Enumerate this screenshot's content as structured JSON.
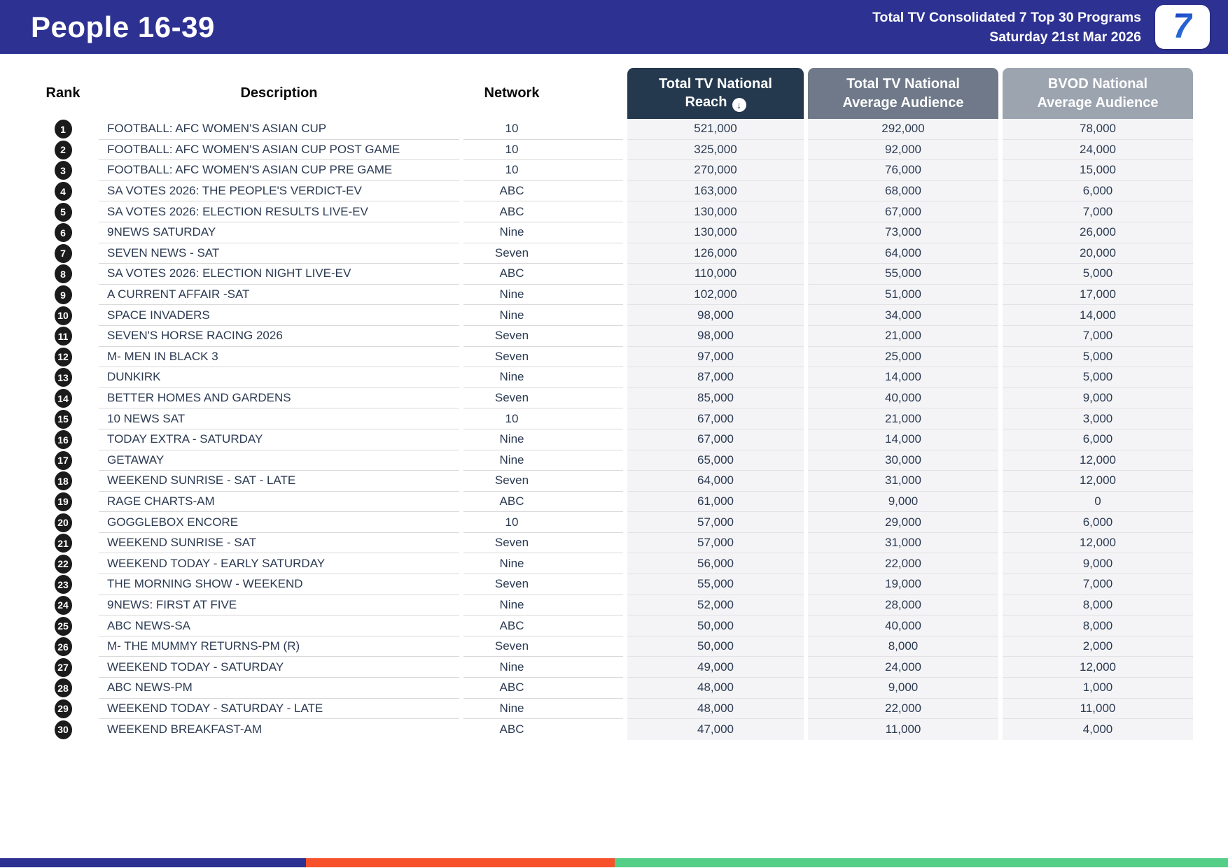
{
  "header": {
    "title": "People 16-39",
    "subtitle_line1": "Total TV Consolidated 7 Top 30 Programs",
    "subtitle_line2": "Saturday 21st Mar 2026",
    "logo_text": "7"
  },
  "icons": {
    "sort_descending": "↓"
  },
  "colors": {
    "header_background": "#2D3192",
    "reach_header": "#24384E",
    "avg_audience_header": "#6F7989",
    "bvod_header": "#9CA4B0",
    "metric_cell_background": "#F4F4F6",
    "footer_blue": "#2D3192",
    "footer_orange": "#F7512B",
    "footer_green": "#55CF88",
    "logo_blue": "#1B43C8"
  },
  "table": {
    "columns": {
      "rank": "Rank",
      "description": "Description",
      "network": "Network",
      "reach": "Total TV National Reach",
      "avg_audience": "Total TV National Average Audience",
      "bvod_avg_audience": "BVOD National Average Audience"
    },
    "rows": [
      {
        "rank": "1",
        "description": "FOOTBALL: AFC WOMEN'S ASIAN CUP",
        "network": "10",
        "reach": "521,000",
        "avg_audience": "292,000",
        "bvod_avg_audience": "78,000"
      },
      {
        "rank": "2",
        "description": "FOOTBALL: AFC WOMEN'S ASIAN CUP POST GAME",
        "network": "10",
        "reach": "325,000",
        "avg_audience": "92,000",
        "bvod_avg_audience": "24,000"
      },
      {
        "rank": "3",
        "description": "FOOTBALL: AFC WOMEN'S ASIAN CUP PRE GAME",
        "network": "10",
        "reach": "270,000",
        "avg_audience": "76,000",
        "bvod_avg_audience": "15,000"
      },
      {
        "rank": "4",
        "description": "SA VOTES 2026: THE PEOPLE'S VERDICT-EV",
        "network": "ABC",
        "reach": "163,000",
        "avg_audience": "68,000",
        "bvod_avg_audience": "6,000"
      },
      {
        "rank": "5",
        "description": "SA VOTES 2026: ELECTION RESULTS LIVE-EV",
        "network": "ABC",
        "reach": "130,000",
        "avg_audience": "67,000",
        "bvod_avg_audience": "7,000"
      },
      {
        "rank": "6",
        "description": "9NEWS SATURDAY",
        "network": "Nine",
        "reach": "130,000",
        "avg_audience": "73,000",
        "bvod_avg_audience": "26,000"
      },
      {
        "rank": "7",
        "description": "SEVEN NEWS - SAT",
        "network": "Seven",
        "reach": "126,000",
        "avg_audience": "64,000",
        "bvod_avg_audience": "20,000"
      },
      {
        "rank": "8",
        "description": "SA VOTES 2026: ELECTION NIGHT LIVE-EV",
        "network": "ABC",
        "reach": "110,000",
        "avg_audience": "55,000",
        "bvod_avg_audience": "5,000"
      },
      {
        "rank": "9",
        "description": "A CURRENT AFFAIR -SAT",
        "network": "Nine",
        "reach": "102,000",
        "avg_audience": "51,000",
        "bvod_avg_audience": "17,000"
      },
      {
        "rank": "10",
        "description": "SPACE INVADERS",
        "network": "Nine",
        "reach": "98,000",
        "avg_audience": "34,000",
        "bvod_avg_audience": "14,000"
      },
      {
        "rank": "11",
        "description": "SEVEN'S HORSE RACING 2026",
        "network": "Seven",
        "reach": "98,000",
        "avg_audience": "21,000",
        "bvod_avg_audience": "7,000"
      },
      {
        "rank": "12",
        "description": "M- MEN IN BLACK 3",
        "network": "Seven",
        "reach": "97,000",
        "avg_audience": "25,000",
        "bvod_avg_audience": "5,000"
      },
      {
        "rank": "13",
        "description": "DUNKIRK",
        "network": "Nine",
        "reach": "87,000",
        "avg_audience": "14,000",
        "bvod_avg_audience": "5,000"
      },
      {
        "rank": "14",
        "description": "BETTER HOMES AND GARDENS",
        "network": "Seven",
        "reach": "85,000",
        "avg_audience": "40,000",
        "bvod_avg_audience": "9,000"
      },
      {
        "rank": "15",
        "description": "10 NEWS SAT",
        "network": "10",
        "reach": "67,000",
        "avg_audience": "21,000",
        "bvod_avg_audience": "3,000"
      },
      {
        "rank": "16",
        "description": "TODAY EXTRA - SATURDAY",
        "network": "Nine",
        "reach": "67,000",
        "avg_audience": "14,000",
        "bvod_avg_audience": "6,000"
      },
      {
        "rank": "17",
        "description": "GETAWAY",
        "network": "Nine",
        "reach": "65,000",
        "avg_audience": "30,000",
        "bvod_avg_audience": "12,000"
      },
      {
        "rank": "18",
        "description": "WEEKEND SUNRISE - SAT - LATE",
        "network": "Seven",
        "reach": "64,000",
        "avg_audience": "31,000",
        "bvod_avg_audience": "12,000"
      },
      {
        "rank": "19",
        "description": "RAGE CHARTS-AM",
        "network": "ABC",
        "reach": "61,000",
        "avg_audience": "9,000",
        "bvod_avg_audience": "0"
      },
      {
        "rank": "20",
        "description": "GOGGLEBOX ENCORE",
        "network": "10",
        "reach": "57,000",
        "avg_audience": "29,000",
        "bvod_avg_audience": "6,000"
      },
      {
        "rank": "21",
        "description": "WEEKEND SUNRISE - SAT",
        "network": "Seven",
        "reach": "57,000",
        "avg_audience": "31,000",
        "bvod_avg_audience": "12,000"
      },
      {
        "rank": "22",
        "description": "WEEKEND TODAY - EARLY SATURDAY",
        "network": "Nine",
        "reach": "56,000",
        "avg_audience": "22,000",
        "bvod_avg_audience": "9,000"
      },
      {
        "rank": "23",
        "description": "THE MORNING SHOW - WEEKEND",
        "network": "Seven",
        "reach": "55,000",
        "avg_audience": "19,000",
        "bvod_avg_audience": "7,000"
      },
      {
        "rank": "24",
        "description": "9NEWS: FIRST AT FIVE",
        "network": "Nine",
        "reach": "52,000",
        "avg_audience": "28,000",
        "bvod_avg_audience": "8,000"
      },
      {
        "rank": "25",
        "description": "ABC NEWS-SA",
        "network": "ABC",
        "reach": "50,000",
        "avg_audience": "40,000",
        "bvod_avg_audience": "8,000"
      },
      {
        "rank": "26",
        "description": "M- THE MUMMY RETURNS-PM (R)",
        "network": "Seven",
        "reach": "50,000",
        "avg_audience": "8,000",
        "bvod_avg_audience": "2,000"
      },
      {
        "rank": "27",
        "description": "WEEKEND TODAY - SATURDAY",
        "network": "Nine",
        "reach": "49,000",
        "avg_audience": "24,000",
        "bvod_avg_audience": "12,000"
      },
      {
        "rank": "28",
        "description": "ABC NEWS-PM",
        "network": "ABC",
        "reach": "48,000",
        "avg_audience": "9,000",
        "bvod_avg_audience": "1,000"
      },
      {
        "rank": "29",
        "description": "WEEKEND TODAY - SATURDAY - LATE",
        "network": "Nine",
        "reach": "48,000",
        "avg_audience": "22,000",
        "bvod_avg_audience": "11,000"
      },
      {
        "rank": "30",
        "description": "WEEKEND BREAKFAST-AM",
        "network": "ABC",
        "reach": "47,000",
        "avg_audience": "11,000",
        "bvod_avg_audience": "4,000"
      }
    ]
  }
}
